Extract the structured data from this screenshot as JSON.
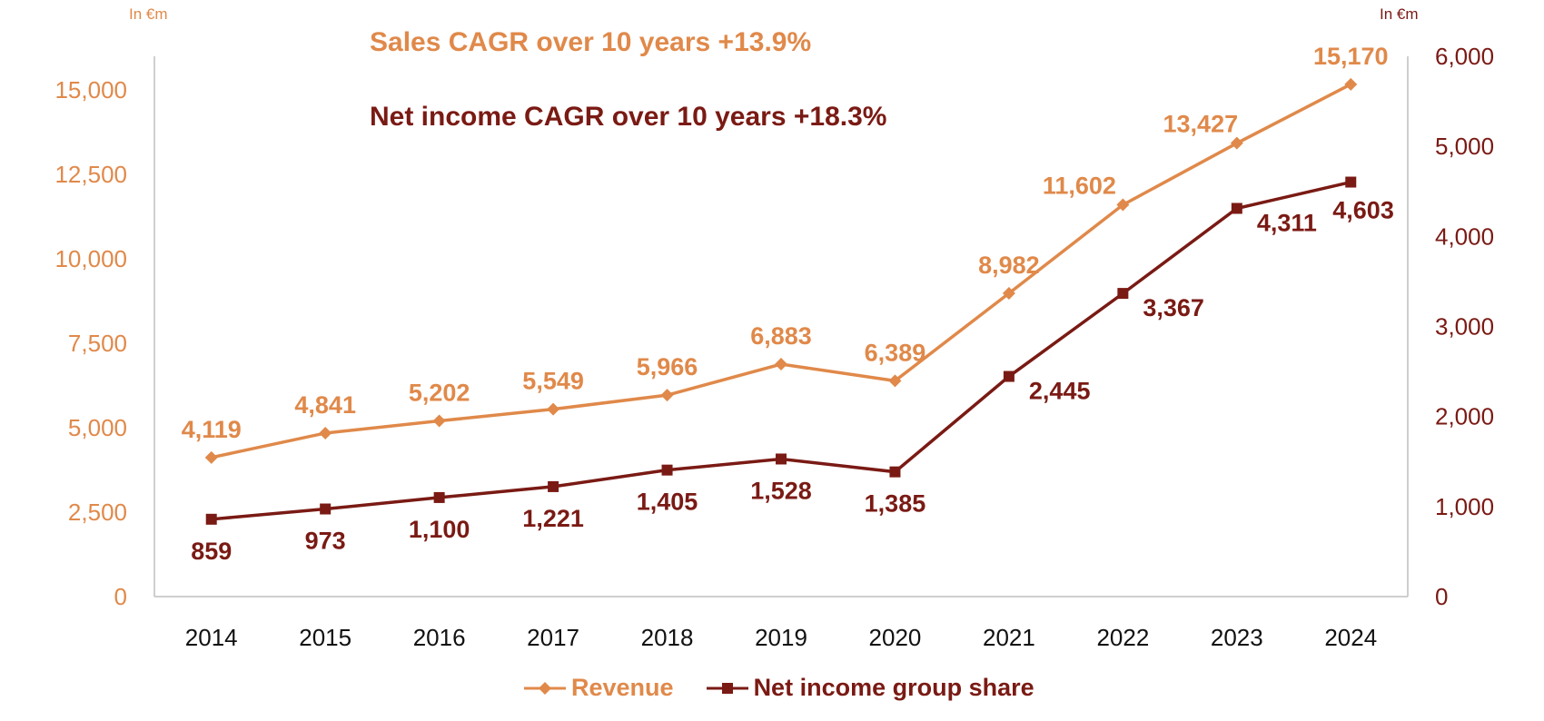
{
  "colors": {
    "revenue": "#E0894A",
    "net_income": "#7A1A14",
    "axis": "#BFBFBF",
    "text": "#111111"
  },
  "units": {
    "left": "In €m",
    "right": "In €m"
  },
  "annotations": {
    "sales_cagr": "Sales CAGR over 10 years +13.9%",
    "net_income_cagr": "Net income CAGR over 10 years +18.3%"
  },
  "chart_data": {
    "type": "line",
    "x": [
      "2014",
      "2015",
      "2016",
      "2017",
      "2018",
      "2019",
      "2020",
      "2021",
      "2022",
      "2023",
      "2024"
    ],
    "series": [
      {
        "name": "Revenue",
        "axis": "left",
        "marker": "diamond",
        "values": [
          4119,
          4841,
          5202,
          5549,
          5966,
          6883,
          6389,
          8982,
          11602,
          13427,
          15170
        ],
        "labels": [
          "4,119",
          "4,841",
          "5,202",
          "5,549",
          "5,966",
          "6,883",
          "6,389",
          "8,982",
          "11,602",
          "13,427",
          "15,170"
        ]
      },
      {
        "name": "Net income group share",
        "axis": "right",
        "marker": "square",
        "values": [
          859,
          973,
          1100,
          1221,
          1405,
          1528,
          1385,
          2445,
          3367,
          4311,
          4603
        ],
        "labels": [
          "859",
          "973",
          "1,100",
          "1,221",
          "1,405",
          "1,528",
          "1,385",
          "2,445",
          "3,367",
          "4,311",
          "4,603"
        ]
      }
    ],
    "y_left": {
      "lim": [
        0,
        16000
      ],
      "ticks": [
        0,
        2500,
        5000,
        7500,
        10000,
        12500,
        15000
      ],
      "tick_labels": [
        "0",
        "2,500",
        "5,000",
        "7,500",
        "10,000",
        "12,500",
        "15,000"
      ]
    },
    "y_right": {
      "lim": [
        0,
        6000
      ],
      "ticks": [
        0,
        1000,
        2000,
        3000,
        4000,
        5000,
        6000
      ],
      "tick_labels": [
        "0",
        "1,000",
        "2,000",
        "3,000",
        "4,000",
        "5,000",
        "6,000"
      ]
    },
    "grid": false,
    "legend": "bottom-center"
  }
}
